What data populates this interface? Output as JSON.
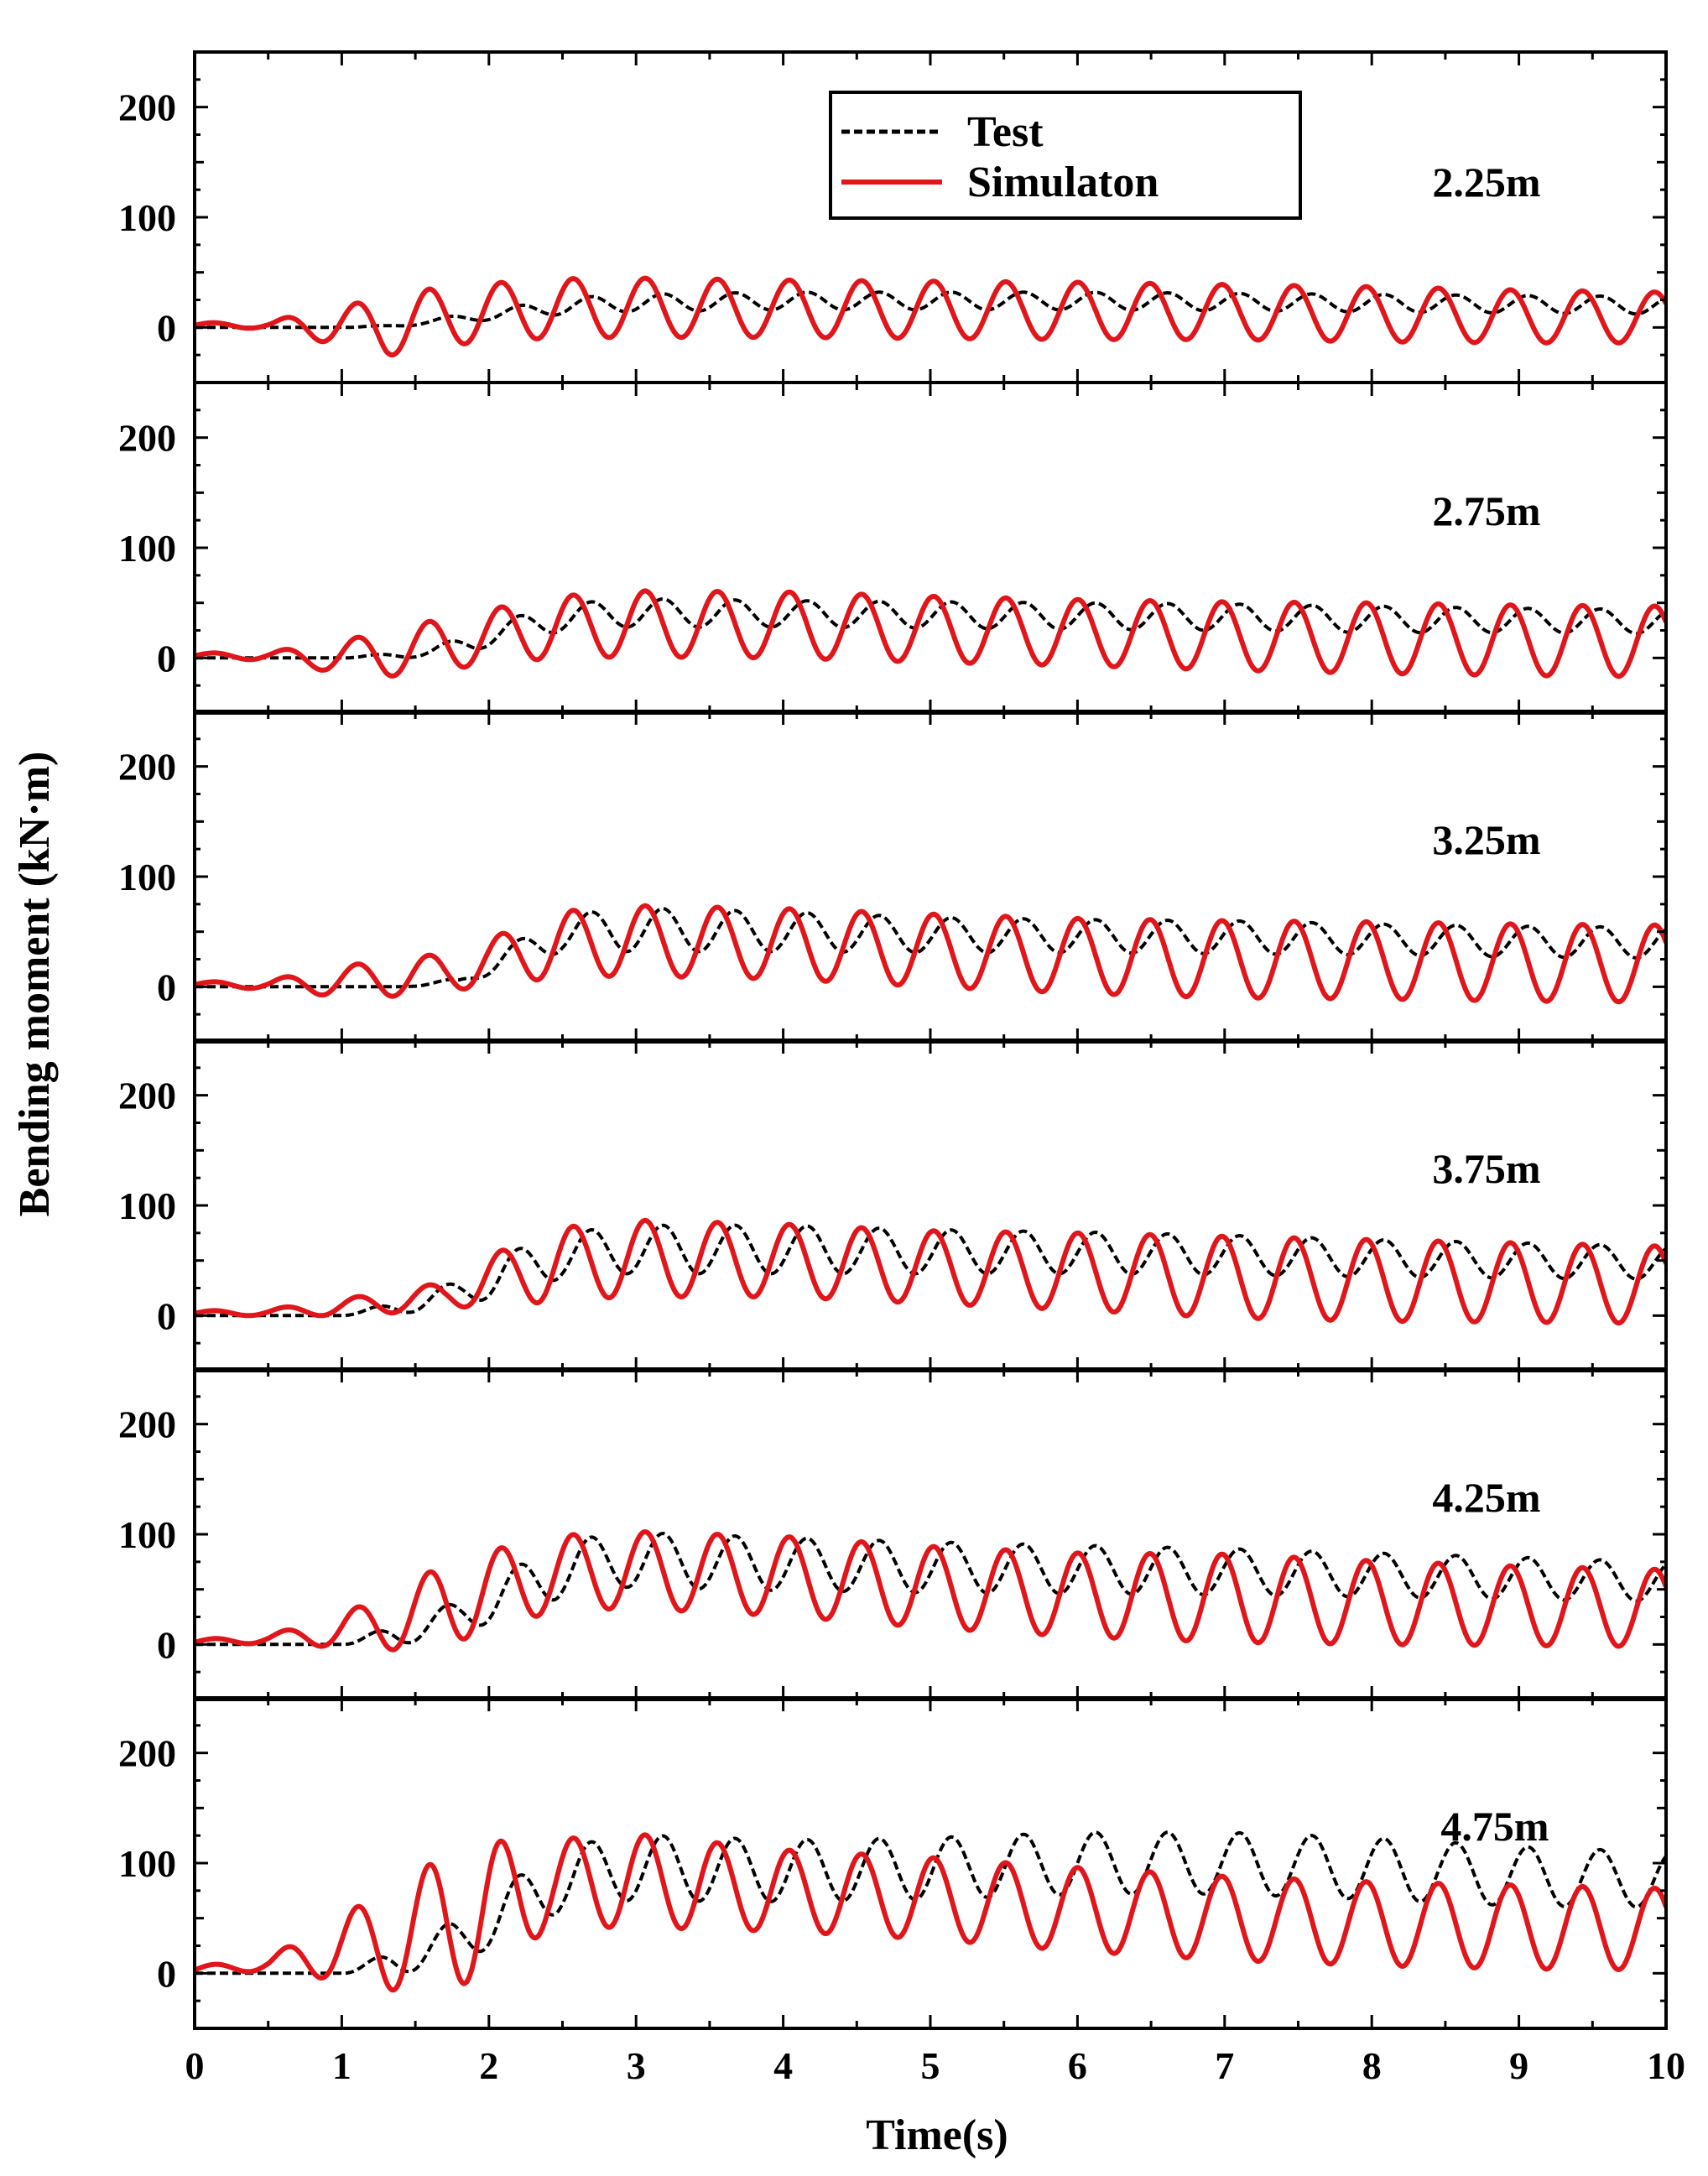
{
  "chart_data": {
    "type": "line",
    "xlabel": "Time(s)",
    "ylabel": "Bending moment (kN·m)",
    "xlim": [
      0,
      10
    ],
    "ylim": [
      -50,
      250
    ],
    "x_ticks": [
      "0",
      "1",
      "2",
      "3",
      "4",
      "5",
      "6",
      "7",
      "8",
      "9",
      "10"
    ],
    "y_ticks": [
      "0",
      "100",
      "200"
    ],
    "legend": {
      "position": "top-center",
      "entries": [
        {
          "label": "Test",
          "color": "#000000",
          "style": "dashed"
        },
        {
          "label": "Simulaton",
          "color": "#e0161b",
          "style": "solid"
        }
      ]
    },
    "period_s": 0.49,
    "panels": [
      {
        "label": "2.25m",
        "test": {
          "name": "Test",
          "x": [
            0,
            0.5,
            1.0,
            1.3,
            1.6,
            1.9,
            2.1,
            2.4,
            2.9,
            4,
            5,
            6,
            7,
            8,
            9,
            10
          ],
          "mean": [
            0,
            0,
            0,
            1,
            5,
            10,
            12,
            18,
            22,
            24,
            24,
            24,
            23,
            22,
            21,
            20
          ],
          "amp": [
            0,
            0,
            0,
            1,
            2,
            4,
            5,
            7,
            8,
            8,
            8,
            8,
            8,
            8,
            8,
            8
          ]
        },
        "simulation": {
          "name": "Simulaton",
          "x": [
            0,
            0.5,
            0.9,
            1.3,
            1.6,
            2.0,
            2.4,
            2.9,
            4,
            5,
            6,
            7,
            8,
            9,
            10
          ],
          "mean": [
            2,
            2,
            2,
            0,
            8,
            14,
            17,
            18,
            17,
            16,
            15,
            14,
            12,
            10,
            9
          ],
          "amp": [
            2,
            3,
            16,
            26,
            27,
            26,
            27,
            27,
            26,
            26,
            26,
            25,
            25,
            24,
            23
          ]
        }
      },
      {
        "label": "2.75m",
        "test": {
          "name": "Test",
          "x": [
            0,
            0.5,
            1.0,
            1.3,
            1.6,
            1.9,
            2.2,
            2.5,
            2.9,
            4,
            5,
            6,
            7,
            8,
            9,
            10
          ],
          "mean": [
            0,
            0,
            0,
            2,
            5,
            15,
            28,
            36,
            41,
            40,
            39,
            38,
            37,
            35,
            34,
            33
          ],
          "amp": [
            0,
            0,
            0,
            2,
            4,
            8,
            10,
            12,
            13,
            12,
            12,
            12,
            12,
            12,
            11,
            11
          ]
        },
        "simulation": {
          "name": "Simulaton",
          "x": [
            0,
            0.5,
            0.9,
            1.3,
            1.7,
            2.0,
            2.4,
            2.9,
            4,
            5,
            6,
            7,
            8,
            9,
            10
          ],
          "mean": [
            2,
            2,
            0,
            4,
            12,
            20,
            27,
            31,
            30,
            26,
            23,
            20,
            18,
            16,
            15
          ],
          "amp": [
            2,
            4,
            12,
            21,
            24,
            24,
            28,
            30,
            30,
            30,
            30,
            31,
            32,
            32,
            32
          ]
        }
      },
      {
        "label": "3.25m",
        "test": {
          "name": "Test",
          "x": [
            0,
            0.5,
            1.0,
            1.4,
            1.8,
            2.1,
            2.5,
            2.9,
            4,
            5,
            6,
            7,
            8,
            9,
            10
          ],
          "mean": [
            0,
            0,
            0,
            0,
            5,
            25,
            48,
            52,
            50,
            47,
            46,
            45,
            43,
            41,
            40
          ],
          "amp": [
            0,
            0,
            0,
            0,
            3,
            10,
            16,
            20,
            18,
            16,
            15,
            15,
            14,
            14,
            14
          ]
        },
        "simulation": {
          "name": "Simulaton",
          "x": [
            0,
            0.5,
            0.9,
            1.3,
            1.7,
            2.0,
            2.4,
            2.9,
            4,
            5,
            6,
            7,
            8,
            9,
            10
          ],
          "mean": [
            2,
            2,
            4,
            8,
            12,
            23,
            37,
            42,
            39,
            33,
            28,
            25,
            24,
            22,
            21
          ],
          "amp": [
            2,
            4,
            12,
            17,
            18,
            20,
            30,
            32,
            32,
            33,
            34,
            35,
            35,
            35,
            35
          ]
        }
      },
      {
        "label": "3.75m",
        "test": {
          "name": "Test",
          "x": [
            0,
            0.5,
            1.0,
            1.4,
            1.8,
            2.1,
            2.5,
            2.9,
            4,
            5,
            6,
            7,
            8,
            9,
            10
          ],
          "mean": [
            0,
            0,
            0,
            8,
            20,
            38,
            54,
            60,
            60,
            58,
            57,
            55,
            52,
            50,
            48
          ],
          "amp": [
            0,
            0,
            0,
            6,
            12,
            18,
            20,
            22,
            22,
            20,
            19,
            18,
            17,
            16,
            15
          ]
        },
        "simulation": {
          "name": "Simulaton",
          "x": [
            0,
            0.5,
            0.9,
            1.3,
            1.7,
            2.0,
            2.4,
            2.9,
            4,
            5,
            6,
            7,
            8,
            9,
            10
          ],
          "mean": [
            2,
            3,
            6,
            12,
            18,
            32,
            45,
            52,
            50,
            44,
            40,
            35,
            32,
            30,
            28
          ],
          "amp": [
            2,
            3,
            6,
            10,
            12,
            22,
            33,
            35,
            33,
            33,
            35,
            37,
            37,
            36,
            35
          ]
        }
      },
      {
        "label": "4.25m",
        "test": {
          "name": "Test",
          "x": [
            0,
            0.5,
            1.0,
            1.4,
            1.8,
            2.1,
            2.5,
            2.9,
            4,
            5,
            6,
            7,
            8,
            9,
            10
          ],
          "mean": [
            0,
            0,
            0,
            10,
            25,
            45,
            68,
            77,
            73,
            70,
            68,
            66,
            63,
            60,
            57
          ],
          "amp": [
            0,
            0,
            0,
            10,
            15,
            20,
            25,
            25,
            24,
            23,
            22,
            21,
            20,
            19,
            18
          ]
        },
        "simulation": {
          "name": "Simulaton",
          "x": [
            0,
            0.5,
            0.9,
            1.3,
            1.7,
            2.0,
            2.4,
            2.9,
            4,
            5,
            6,
            7,
            8,
            9,
            10
          ],
          "mean": [
            2,
            5,
            10,
            20,
            35,
            50,
            63,
            68,
            62,
            52,
            45,
            42,
            38,
            35,
            33
          ],
          "amp": [
            2,
            4,
            12,
            25,
            38,
            35,
            35,
            35,
            36,
            37,
            38,
            40,
            38,
            36,
            35
          ]
        }
      },
      {
        "label": "4.75m",
        "test": {
          "name": "Test",
          "x": [
            0,
            0.5,
            1.0,
            1.4,
            1.8,
            2.1,
            2.5,
            2.9,
            4,
            5,
            6,
            7,
            8,
            9,
            10
          ],
          "mean": [
            0,
            0,
            0,
            12,
            30,
            55,
            85,
            96,
            93,
            95,
            100,
            100,
            95,
            88,
            85
          ],
          "amp": [
            0,
            0,
            0,
            12,
            20,
            25,
            28,
            30,
            28,
            28,
            28,
            28,
            28,
            27,
            25
          ]
        },
        "simulation": {
          "name": "Simulaton",
          "x": [
            0,
            0.5,
            0.9,
            1.3,
            1.7,
            2.0,
            2.4,
            2.9,
            4,
            5,
            6,
            7,
            8,
            9,
            10
          ],
          "mean": [
            3,
            8,
            20,
            30,
            45,
            60,
            80,
            85,
            75,
            68,
            58,
            50,
            45,
            42,
            40
          ],
          "amp": [
            3,
            6,
            25,
            45,
            62,
            60,
            40,
            43,
            37,
            37,
            38,
            38,
            38,
            38,
            37
          ]
        }
      }
    ]
  }
}
